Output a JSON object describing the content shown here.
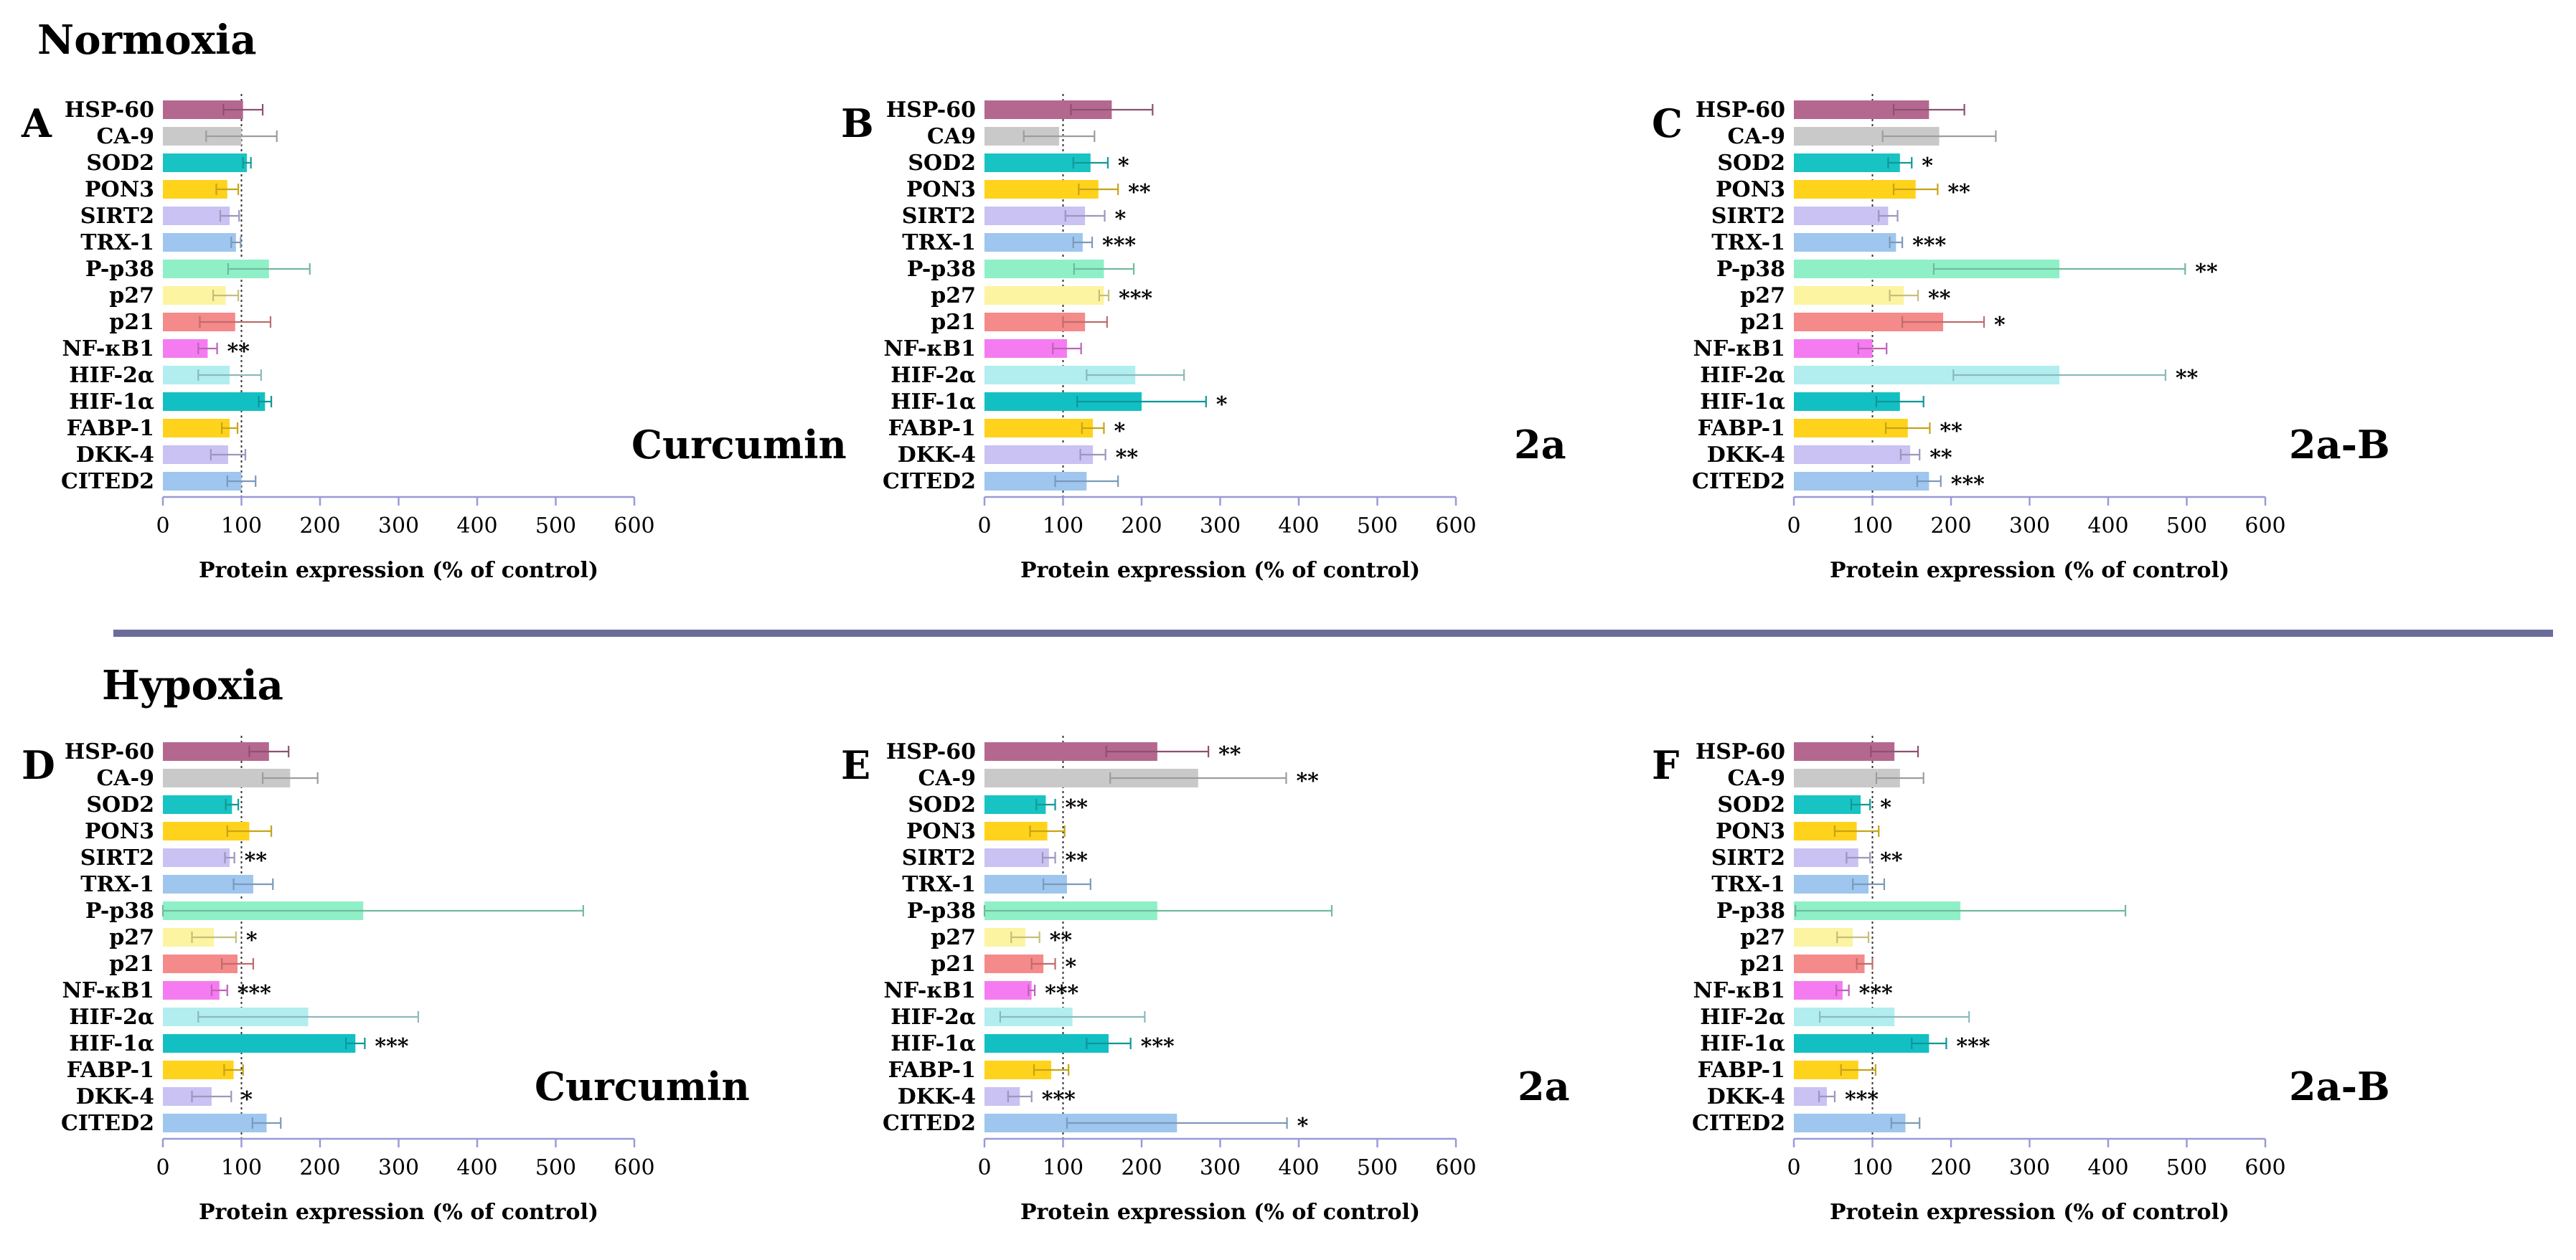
{
  "sections": {
    "normoxia": "Normoxia",
    "hypoxia": "Hypoxia"
  },
  "colors": {
    "HSP-60": "#b5688f",
    "CA-9": "#c9c9c9",
    "CA9": "#c9c9c9",
    "SOD2": "#18c3c3",
    "PON3": "#ffd21c",
    "SIRT2": "#c9c2f2",
    "TRX-1": "#9ec6ee",
    "P-p38": "#8ff0c8",
    "p27": "#fcf4a0",
    "p21": "#f58a8a",
    "NF-κB1": "#f47cf0",
    "HIF-2α": "#b2eef0",
    "HIF-1α": "#12c0c4",
    "FABP-1": "#ffd21c",
    "DKK-4": "#c9c2f2",
    "CITED2": "#9ec6ee",
    "divider": "#6a6d9a"
  },
  "chart_data": [
    {
      "id": "A",
      "type": "bar",
      "orientation": "horizontal",
      "section": "normoxia",
      "treatment": "Curcumin",
      "xlabel": "Protein expression (% of control)",
      "xlim": [
        0,
        600
      ],
      "xticks": [
        0,
        100,
        200,
        300,
        400,
        500,
        600
      ],
      "reference_line": 100,
      "categories": [
        "HSP-60",
        "CA-9",
        "SOD2",
        "PON3",
        "SIRT2",
        "TRX-1",
        "P-p38",
        "p27",
        "p21",
        "NF-κB1",
        "HIF-2α",
        "HIF-1α",
        "FABP-1",
        "DKK-4",
        "CITED2"
      ],
      "values": [
        102,
        100,
        107,
        82,
        85,
        93,
        135,
        80,
        92,
        57,
        85,
        130,
        85,
        83,
        100
      ],
      "errors": [
        25,
        45,
        5,
        14,
        12,
        6,
        52,
        16,
        45,
        12,
        40,
        8,
        10,
        22,
        18
      ],
      "significance": [
        "",
        "",
        "",
        "",
        "",
        "",
        "",
        "",
        "",
        "**",
        "",
        "",
        "",
        "",
        ""
      ]
    },
    {
      "id": "B",
      "type": "bar",
      "orientation": "horizontal",
      "section": "normoxia",
      "treatment": "2a",
      "xlabel": "Protein expression (% of control)",
      "xlim": [
        0,
        600
      ],
      "xticks": [
        0,
        100,
        200,
        300,
        400,
        500,
        600
      ],
      "reference_line": 100,
      "categories": [
        "HSP-60",
        "CA9",
        "SOD2",
        "PON3",
        "SIRT2",
        "TRX-1",
        "P-p38",
        "p27",
        "p21",
        "NF-κB1",
        "HIF-2α",
        "HIF-1α",
        "FABP-1",
        "DKK-4",
        "CITED2"
      ],
      "values": [
        162,
        95,
        135,
        145,
        128,
        125,
        152,
        152,
        128,
        105,
        192,
        200,
        138,
        138,
        130
      ],
      "errors": [
        52,
        45,
        22,
        25,
        25,
        12,
        38,
        6,
        28,
        18,
        62,
        82,
        14,
        16,
        40
      ],
      "significance": [
        "",
        "",
        "*",
        "**",
        "*",
        "***",
        "",
        "***",
        "",
        "",
        "",
        "*",
        "*",
        "**",
        ""
      ]
    },
    {
      "id": "C",
      "type": "bar",
      "orientation": "horizontal",
      "section": "normoxia",
      "treatment": "2a-B",
      "xlabel": "Protein expression (% of control)",
      "xlim": [
        0,
        600
      ],
      "xticks": [
        0,
        100,
        200,
        300,
        400,
        500,
        600
      ],
      "reference_line": 100,
      "categories": [
        "HSP-60",
        "CA-9",
        "SOD2",
        "PON3",
        "SIRT2",
        "TRX-1",
        "P-p38",
        "p27",
        "p21",
        "NF-κB1",
        "HIF-2α",
        "HIF-1α",
        "FABP-1",
        "DKK-4",
        "CITED2"
      ],
      "values": [
        172,
        185,
        135,
        155,
        120,
        130,
        338,
        140,
        190,
        100,
        338,
        135,
        145,
        148,
        172
      ],
      "errors": [
        45,
        72,
        15,
        28,
        12,
        8,
        160,
        18,
        52,
        18,
        135,
        30,
        28,
        12,
        15
      ],
      "significance": [
        "",
        "",
        "*",
        "**",
        "",
        "***",
        "**",
        "**",
        "*",
        "",
        "**",
        "",
        "**",
        "**",
        "***"
      ]
    },
    {
      "id": "D",
      "type": "bar",
      "orientation": "horizontal",
      "section": "hypoxia",
      "treatment": "Curcumin",
      "xlabel": "Protein expression (% of control)",
      "xlim": [
        0,
        600
      ],
      "xticks": [
        0,
        100,
        200,
        300,
        400,
        500,
        600
      ],
      "reference_line": 100,
      "categories": [
        "HSP-60",
        "CA-9",
        "SOD2",
        "PON3",
        "SIRT2",
        "TRX-1",
        "P-p38",
        "p27",
        "p21",
        "NF-κB1",
        "HIF-2α",
        "HIF-1α",
        "FABP-1",
        "DKK-4",
        "CITED2"
      ],
      "values": [
        135,
        162,
        88,
        110,
        85,
        115,
        255,
        65,
        95,
        72,
        185,
        245,
        90,
        62,
        132
      ],
      "errors": [
        25,
        35,
        8,
        28,
        6,
        25,
        280,
        28,
        20,
        10,
        140,
        12,
        12,
        25,
        18
      ],
      "significance": [
        "",
        "",
        "",
        "",
        "**",
        "",
        "",
        "*",
        "",
        "***",
        "",
        "***",
        "",
        "*",
        ""
      ]
    },
    {
      "id": "E",
      "type": "bar",
      "orientation": "horizontal",
      "section": "hypoxia",
      "treatment": "2a",
      "xlabel": "Protein expression (% of control)",
      "xlim": [
        0,
        600
      ],
      "xticks": [
        0,
        100,
        200,
        300,
        400,
        500,
        600
      ],
      "reference_line": 100,
      "categories": [
        "HSP-60",
        "CA-9",
        "SOD2",
        "PON3",
        "SIRT2",
        "TRX-1",
        "P-p38",
        "p27",
        "p21",
        "NF-κB1",
        "HIF-2α",
        "HIF-1α",
        "FABP-1",
        "DKK-4",
        "CITED2"
      ],
      "values": [
        220,
        272,
        78,
        80,
        82,
        105,
        220,
        52,
        75,
        60,
        112,
        158,
        85,
        45,
        245
      ],
      "errors": [
        65,
        112,
        12,
        22,
        8,
        30,
        222,
        18,
        15,
        4,
        92,
        28,
        22,
        15,
        140
      ],
      "significance": [
        "**",
        "**",
        "**",
        "",
        "**",
        "",
        "",
        "**",
        "*",
        "***",
        "",
        "***",
        "",
        "***",
        "*"
      ]
    },
    {
      "id": "F",
      "type": "bar",
      "orientation": "horizontal",
      "section": "hypoxia",
      "treatment": "2a-B",
      "xlabel": "Protein expression (% of control)",
      "xlim": [
        0,
        600
      ],
      "xticks": [
        0,
        100,
        200,
        300,
        400,
        500,
        600
      ],
      "reference_line": 100,
      "categories": [
        "HSP-60",
        "CA-9",
        "SOD2",
        "PON3",
        "SIRT2",
        "TRX-1",
        "P-p38",
        "p27",
        "p21",
        "NF-κB1",
        "HIF-2α",
        "HIF-1α",
        "FABP-1",
        "DKK-4",
        "CITED2"
      ],
      "values": [
        128,
        135,
        85,
        80,
        82,
        95,
        212,
        75,
        90,
        62,
        128,
        172,
        82,
        42,
        142
      ],
      "errors": [
        30,
        30,
        12,
        28,
        15,
        20,
        210,
        20,
        10,
        8,
        95,
        22,
        22,
        10,
        18
      ],
      "significance": [
        "",
        "",
        "*",
        "",
        "**",
        "",
        "",
        "",
        "",
        "***",
        "",
        "***",
        "",
        "***",
        ""
      ]
    }
  ]
}
